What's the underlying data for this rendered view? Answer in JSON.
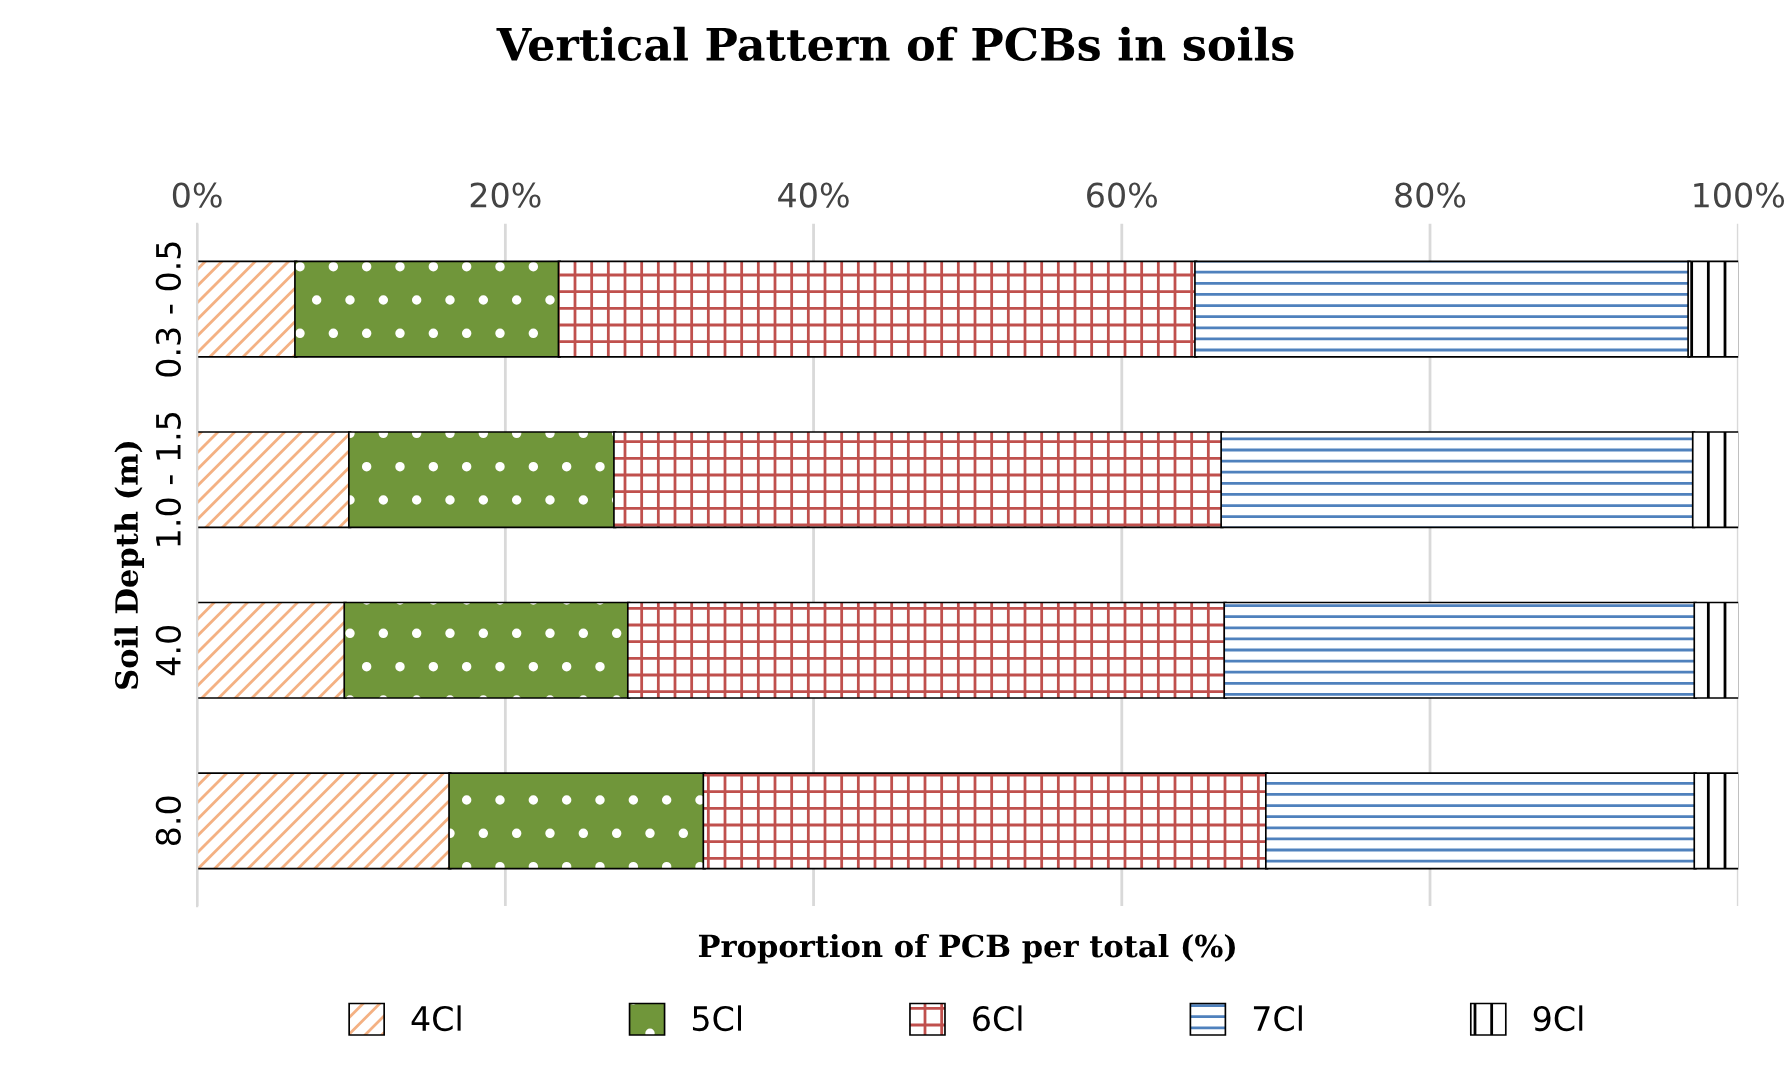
{
  "chart_data": {
    "type": "bar",
    "orientation": "horizontal",
    "stacked": true,
    "title": "Vertical Pattern of PCBs in soils",
    "xlabel": "Proportion of PCB per total (%)",
    "ylabel": "Soil Depth (m)",
    "categories": [
      "0.3 - 0.5",
      "1.0 - 1.5",
      "4.0",
      "8.0"
    ],
    "series": [
      {
        "name": "4Cl",
        "color": "#f4b183",
        "values": [
          6.4,
          9.9,
          9.6,
          16.4
        ]
      },
      {
        "name": "5Cl",
        "color": "#70963a",
        "values": [
          17.1,
          17.2,
          18.4,
          16.5
        ]
      },
      {
        "name": "6Cl",
        "color": "#c0504d",
        "values": [
          41.3,
          39.4,
          38.7,
          36.5
        ]
      },
      {
        "name": "7Cl",
        "color": "#4f81bd",
        "values": [
          32.0,
          30.6,
          30.5,
          27.8
        ]
      },
      {
        "name": "9Cl",
        "color": "#000000",
        "values": [
          3.2,
          2.9,
          2.8,
          2.8
        ]
      }
    ],
    "xlim": [
      0,
      100
    ],
    "xticks": [
      {
        "value": 0,
        "label": "0%"
      },
      {
        "value": 20,
        "label": "20%"
      },
      {
        "value": 40,
        "label": "40%"
      },
      {
        "value": 60,
        "label": "60%"
      },
      {
        "value": 80,
        "label": "80%"
      },
      {
        "value": 100,
        "label": "100%"
      }
    ],
    "grid": "x",
    "legend": "bottom"
  }
}
